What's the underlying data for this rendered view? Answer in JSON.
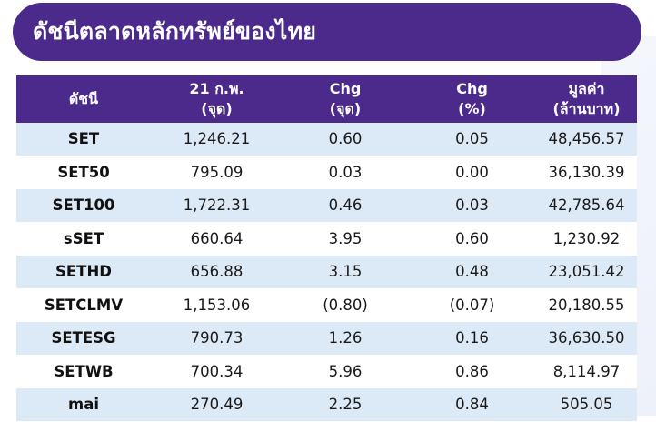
{
  "title": "ดัชนีตลาดหลักทรัพย์ของไทย",
  "table": {
    "headers": [
      {
        "line1": "ดัชนี",
        "line2": ""
      },
      {
        "line1": "21 ก.พ.",
        "line2": "(จุด)"
      },
      {
        "line1": "Chg",
        "line2": "(จุด)"
      },
      {
        "line1": "Chg",
        "line2": "(%)"
      },
      {
        "line1": "มูลค่า",
        "line2": "(ล้านบาท)"
      }
    ],
    "rows": [
      {
        "index": "SET",
        "value": "1,246.21",
        "chg_pts": "0.60",
        "chg_pct": "0.05",
        "turnover": "48,456.57"
      },
      {
        "index": "SET50",
        "value": "795.09",
        "chg_pts": "0.03",
        "chg_pct": "0.00",
        "turnover": "36,130.39"
      },
      {
        "index": "SET100",
        "value": "1,722.31",
        "chg_pts": "0.46",
        "chg_pct": "0.03",
        "turnover": "42,785.64"
      },
      {
        "index": "sSET",
        "value": "660.64",
        "chg_pts": "3.95",
        "chg_pct": "0.60",
        "turnover": "1,230.92"
      },
      {
        "index": "SETHD",
        "value": "656.88",
        "chg_pts": "3.15",
        "chg_pct": "0.48",
        "turnover": "23,051.42"
      },
      {
        "index": "SETCLMV",
        "value": "1,153.06",
        "chg_pts": "(0.80)",
        "chg_pct": "(0.07)",
        "turnover": "20,180.55"
      },
      {
        "index": "SETESG",
        "value": "790.73",
        "chg_pts": "1.26",
        "chg_pct": "0.16",
        "turnover": "36,630.50"
      },
      {
        "index": "SETWB",
        "value": "700.34",
        "chg_pts": "5.96",
        "chg_pct": "0.86",
        "turnover": "8,114.97"
      },
      {
        "index": "mai",
        "value": "270.49",
        "chg_pts": "2.25",
        "chg_pct": "0.84",
        "turnover": "505.05"
      }
    ]
  },
  "colors": {
    "header_purple": "#4b2a8c",
    "row_stripe": "#dce9f6"
  }
}
